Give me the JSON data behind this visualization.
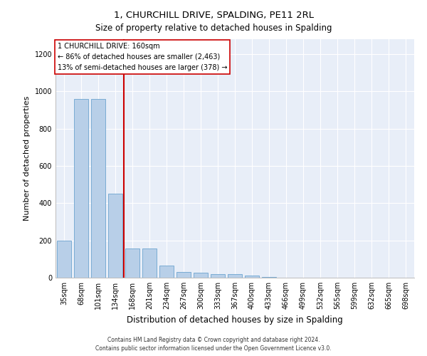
{
  "title": "1, CHURCHILL DRIVE, SPALDING, PE11 2RL",
  "subtitle": "Size of property relative to detached houses in Spalding",
  "xlabel": "Distribution of detached houses by size in Spalding",
  "ylabel": "Number of detached properties",
  "categories": [
    "35sqm",
    "68sqm",
    "101sqm",
    "134sqm",
    "168sqm",
    "201sqm",
    "234sqm",
    "267sqm",
    "300sqm",
    "333sqm",
    "367sqm",
    "400sqm",
    "433sqm",
    "466sqm",
    "499sqm",
    "532sqm",
    "565sqm",
    "599sqm",
    "632sqm",
    "665sqm",
    "698sqm"
  ],
  "values": [
    200,
    960,
    960,
    450,
    155,
    155,
    65,
    30,
    28,
    20,
    20,
    10,
    5,
    0,
    0,
    0,
    0,
    0,
    0,
    0,
    0
  ],
  "bar_color": "#b8cfe8",
  "bar_edge_color": "#7aacd4",
  "background_color": "#e8eef8",
  "red_line_bin": 4,
  "annotation_line1": "1 CHURCHILL DRIVE: 160sqm",
  "annotation_line2": "← 86% of detached houses are smaller (2,463)",
  "annotation_line3": "13% of semi-detached houses are larger (378) →",
  "annotation_box_facecolor": "white",
  "annotation_box_edgecolor": "#cc0000",
  "ylim_max": 1280,
  "yticks": [
    0,
    200,
    400,
    600,
    800,
    1000,
    1200
  ],
  "footer1": "Contains HM Land Registry data © Crown copyright and database right 2024.",
  "footer2": "Contains public sector information licensed under the Open Government Licence v3.0.",
  "title_fontsize": 9.5,
  "subtitle_fontsize": 8.5,
  "tick_fontsize": 7,
  "ylabel_fontsize": 8,
  "xlabel_fontsize": 8.5,
  "annotation_fontsize": 7,
  "footer_fontsize": 5.5
}
